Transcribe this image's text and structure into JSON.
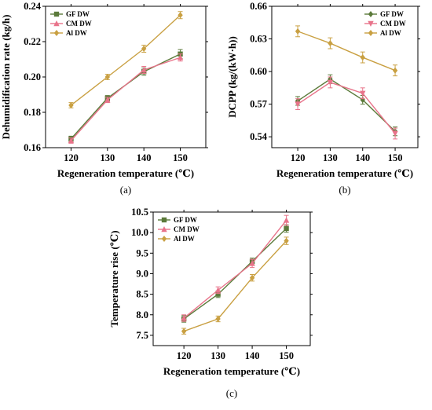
{
  "colors": {
    "gf": "#5b7a3a",
    "cm": "#e8738a",
    "al": "#c9a042"
  },
  "chart_data": [
    {
      "type": "line",
      "caption": "(a)",
      "xlabel": "Regeneration temperature (℃)",
      "ylabel": "Dehumidification rate (kg/h)",
      "x": [
        120,
        130,
        140,
        150
      ],
      "xlim": [
        113,
        157
      ],
      "ylim": [
        0.16,
        0.24
      ],
      "yticks": [
        "0.16",
        "0.18",
        "0.20",
        "0.22",
        "0.24"
      ],
      "legend_position": "top-left",
      "series": [
        {
          "name": "GF DW",
          "marker": "square",
          "values": [
            0.165,
            0.188,
            0.203,
            0.213
          ],
          "err": [
            0.0015,
            0.0015,
            0.002,
            0.0025
          ]
        },
        {
          "name": "CM DW",
          "marker": "triangle",
          "values": [
            0.164,
            0.187,
            0.204,
            0.211
          ],
          "err": [
            0.0015,
            0.0015,
            0.002,
            0.002
          ]
        },
        {
          "name": "Al DW",
          "marker": "diamond",
          "values": [
            0.184,
            0.2,
            0.216,
            0.235
          ],
          "err": [
            0.0015,
            0.0015,
            0.002,
            0.002
          ]
        }
      ]
    },
    {
      "type": "line",
      "caption": "(b)",
      "xlabel": "Regeneration temperature (℃)",
      "ylabel": "DCPP (kg/(kW·h))",
      "x": [
        120,
        130,
        140,
        150
      ],
      "xlim": [
        112,
        157
      ],
      "ylim": [
        0.53,
        0.66
      ],
      "yticks": [
        "0.54",
        "0.57",
        "0.60",
        "0.63",
        "0.66"
      ],
      "legend_position": "top-right",
      "series": [
        {
          "name": "GF DW",
          "marker": "diamond",
          "values": [
            0.573,
            0.593,
            0.574,
            0.545
          ],
          "err": [
            0.004,
            0.004,
            0.004,
            0.004
          ]
        },
        {
          "name": "CM DW",
          "marker": "triangle-down",
          "values": [
            0.57,
            0.59,
            0.58,
            0.543
          ],
          "err": [
            0.005,
            0.005,
            0.005,
            0.005
          ]
        },
        {
          "name": "Al DW",
          "marker": "diamond",
          "values": [
            0.637,
            0.626,
            0.613,
            0.601
          ],
          "err": [
            0.005,
            0.005,
            0.005,
            0.005
          ]
        }
      ]
    },
    {
      "type": "line",
      "caption": "(c)",
      "xlabel": "Regeneration temperature (℃)",
      "ylabel": "Temperature rise (℃)",
      "x": [
        120,
        130,
        140,
        150
      ],
      "xlim": [
        111,
        157
      ],
      "ylim": [
        7.25,
        10.5
      ],
      "yticks": [
        "7.5",
        "8.0",
        "8.5",
        "9.0",
        "9.5",
        "10.0",
        "10.5"
      ],
      "legend_position": "top-left",
      "series": [
        {
          "name": "GF DW",
          "marker": "square",
          "values": [
            7.9,
            8.5,
            9.3,
            10.1
          ],
          "err": [
            0.08,
            0.08,
            0.08,
            0.09
          ]
        },
        {
          "name": "CM DW",
          "marker": "triangle",
          "values": [
            7.92,
            8.6,
            9.25,
            10.3
          ],
          "err": [
            0.08,
            0.08,
            0.1,
            0.12
          ]
        },
        {
          "name": "Al DW",
          "marker": "diamond",
          "values": [
            7.6,
            7.9,
            8.9,
            9.8
          ],
          "err": [
            0.07,
            0.07,
            0.08,
            0.09
          ]
        }
      ]
    }
  ]
}
